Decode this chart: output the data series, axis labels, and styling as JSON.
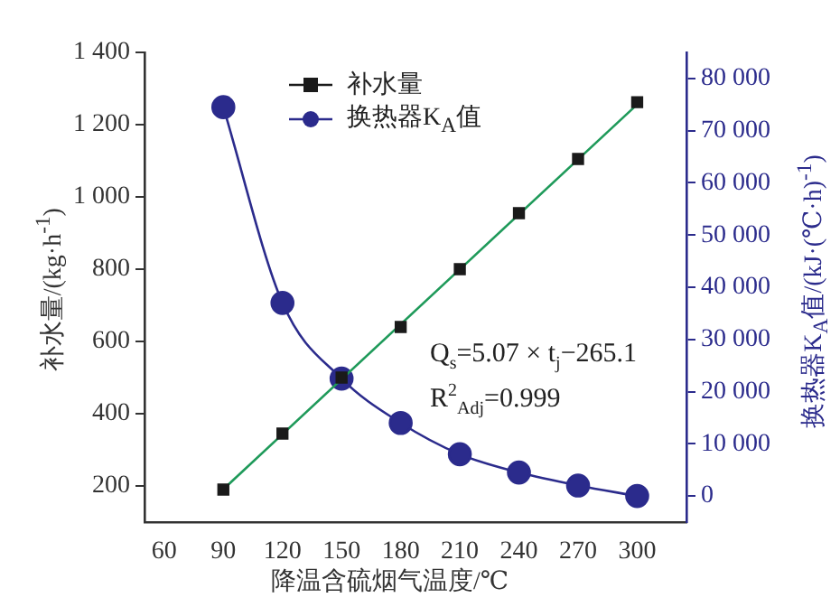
{
  "chart_data": {
    "type": "line",
    "xlabel": "降温含硫烟气温度/℃",
    "ylabel": "补水量/(kg·h$^{-1}$)",
    "y2label": "换热器K$_{A}$值/(kJ·(℃·h)$^{-1}$)",
    "x": [
      90,
      120,
      150,
      180,
      210,
      240,
      270,
      300
    ],
    "xlim": [
      50,
      325
    ],
    "xticks": [
      60,
      90,
      120,
      150,
      180,
      210,
      240,
      270,
      300
    ],
    "ylim": [
      100,
      1400
    ],
    "yticks": [
      200,
      400,
      600,
      800,
      {
        "value": 1000,
        "label": "1 000"
      },
      {
        "value": 1200,
        "label": "1 200"
      },
      {
        "value": 1400,
        "label": "1 400"
      }
    ],
    "y2lim": [
      -5000,
      85000
    ],
    "y2ticks": [
      0,
      {
        "value": 10000,
        "label": "10 000"
      },
      {
        "value": 20000,
        "label": "20 000"
      },
      {
        "value": 30000,
        "label": "30 000"
      },
      {
        "value": 40000,
        "label": "40 000"
      },
      {
        "value": 50000,
        "label": "50 000"
      },
      {
        "value": 60000,
        "label": "60 000"
      },
      {
        "value": 70000,
        "label": "70 000"
      },
      {
        "value": 80000,
        "label": "80 000"
      }
    ],
    "grid": false,
    "legend": "top",
    "series": [
      {
        "name": "补水量",
        "type": "scatter",
        "marker": "square",
        "color": "#1a1a1a",
        "values": [
          190,
          345,
          500,
          640,
          800,
          955,
          1105,
          1262
        ]
      },
      {
        "marker": "none",
        "color": "#1f9a5a",
        "x": [
          90,
          300
        ],
        "values": [
          191,
          1256
        ]
      },
      {
        "name": "换热器K$_{A}$值",
        "marker": "circle",
        "color": "#2b2b8c",
        "axis": "y2",
        "values": [
          74500,
          37000,
          22500,
          14000,
          8000,
          4500,
          2000,
          0
        ]
      }
    ],
    "annotations": [
      "Q$_{s}$=5.07 × t$_{j}$−265.1",
      "R$^{2}$$_{Adj}$=0.999"
    ]
  }
}
